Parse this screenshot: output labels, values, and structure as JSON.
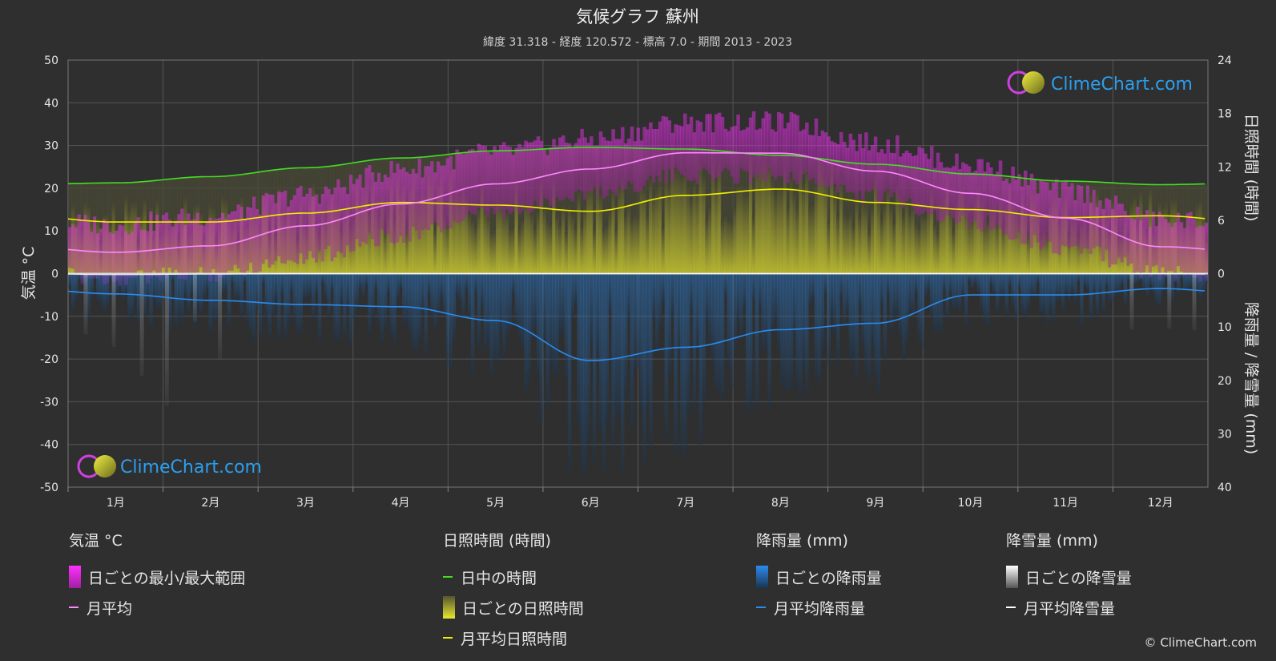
{
  "title": "気候グラフ 蘇州",
  "subtitle": "緯度 31.318 - 経度 120.572 - 標高 7.0 - 期間 2013 - 2023",
  "watermark": "ClimeChart.com",
  "copyright": "© ClimeChart.com",
  "colors": {
    "background": "#2f2f2f",
    "temp_range": "#e040e0",
    "temp_mean": "#ff88ff",
    "daylight": "#44dd22",
    "sunshine_bar": "#8a8a28",
    "sunshine_mean": "#f0f000",
    "rain_bar": "#1f5f8f",
    "rain_mean": "#2a8cf0",
    "snow_mean": "#ffffff",
    "grid": "#5a5a5a",
    "watermark_text": "#2a9ff0"
  },
  "chart_data": {
    "type": "area",
    "categories": [
      "1月",
      "2月",
      "3月",
      "4月",
      "5月",
      "6月",
      "7月",
      "8月",
      "9月",
      "10月",
      "11月",
      "12月"
    ],
    "axes": {
      "left": {
        "label": "気温 °C",
        "range": [
          -50,
          50
        ],
        "ticks": [
          50,
          40,
          30,
          20,
          10,
          0,
          -10,
          -20,
          -30,
          -40,
          -50
        ]
      },
      "right_top": {
        "label": "日照時間 (時間)",
        "range": [
          0,
          24
        ],
        "ticks": [
          24,
          18,
          12,
          6,
          0
        ]
      },
      "right_bottom": {
        "label": "降雨量 / 降雪量 (mm)",
        "range": [
          0,
          40
        ],
        "ticks": [
          10,
          20,
          30,
          40
        ]
      }
    },
    "grid": true,
    "series": [
      {
        "name": "月平均",
        "unit": "°C",
        "values": [
          5.0,
          6.5,
          11.2,
          16.3,
          21.0,
          24.5,
          28.3,
          28.2,
          24.0,
          18.8,
          13.0,
          6.3
        ]
      },
      {
        "name": "日中の時間",
        "unit": "時間",
        "values": [
          10.2,
          10.9,
          11.9,
          13.0,
          13.8,
          14.2,
          14.0,
          13.3,
          12.3,
          11.2,
          10.4,
          10.0
        ]
      },
      {
        "name": "月平均日照時間",
        "unit": "時間",
        "values": [
          5.8,
          5.8,
          6.8,
          8.0,
          7.7,
          7.0,
          8.8,
          9.5,
          8.0,
          7.2,
          6.3,
          6.5
        ]
      },
      {
        "name": "月平均降雨量",
        "unit": "mm",
        "values": [
          3.8,
          5.0,
          5.8,
          6.2,
          8.8,
          16.3,
          13.8,
          10.5,
          9.3,
          4.0,
          4.0,
          2.8
        ]
      },
      {
        "name": "月平均降雪量",
        "unit": "mm",
        "values": [
          0.2,
          0.1,
          0.0,
          0.0,
          0.0,
          0.0,
          0.0,
          0.0,
          0.0,
          0.0,
          0.0,
          0.0
        ]
      }
    ],
    "daily_temp_range": {
      "min": [
        1,
        2,
        6,
        11,
        16,
        21,
        25,
        25,
        20,
        14,
        8,
        2
      ],
      "max": [
        9,
        11,
        16,
        22,
        26,
        29,
        33,
        33,
        28,
        23,
        17,
        10
      ]
    }
  },
  "legend": [
    {
      "heading": "気温 °C",
      "items": [
        {
          "label": "日ごとの最小/最大範囲",
          "kind": "bar",
          "color": "#e040e0"
        },
        {
          "label": "月平均",
          "kind": "line",
          "color": "#ff88ff"
        }
      ]
    },
    {
      "heading": "日照時間 (時間)",
      "items": [
        {
          "label": "日中の時間",
          "kind": "line",
          "color": "#44dd22"
        },
        {
          "label": "日ごとの日照時間",
          "kind": "bar",
          "color": "#c8c840"
        },
        {
          "label": "月平均日照時間",
          "kind": "line",
          "color": "#f0f000"
        }
      ]
    },
    {
      "heading": "降雨量 (mm)",
      "items": [
        {
          "label": "日ごとの降雨量",
          "kind": "bar",
          "color": "#2a8cf0"
        },
        {
          "label": "月平均降雨量",
          "kind": "line",
          "color": "#2a8cf0"
        }
      ]
    },
    {
      "heading": "降雪量 (mm)",
      "items": [
        {
          "label": "日ごとの降雪量",
          "kind": "bar",
          "color": "#dddddd"
        },
        {
          "label": "月平均降雪量",
          "kind": "line",
          "color": "#ffffff"
        }
      ]
    }
  ]
}
